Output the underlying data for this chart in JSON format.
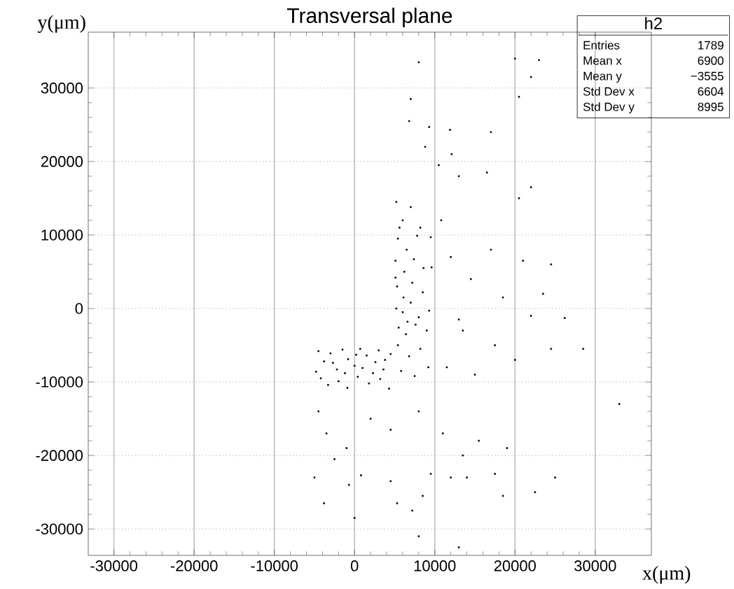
{
  "chart_data": {
    "type": "scatter",
    "title": "Transversal plane",
    "xlabel": "x(μm)",
    "ylabel": "y(μm)",
    "xlim": [
      -33200,
      37000
    ],
    "ylim": [
      -33600,
      37600
    ],
    "xticks": [
      -30000,
      -20000,
      -10000,
      0,
      10000,
      20000,
      30000
    ],
    "yticks": [
      -30000,
      -20000,
      -10000,
      0,
      10000,
      20000,
      30000
    ],
    "grid": true,
    "marker": "square",
    "annotations": [
      "h2",
      "Entries",
      "1789",
      "Mean x",
      "6900",
      "Mean y",
      "−3555",
      "Std Dev x",
      "6604",
      "Std Dev y",
      "8995"
    ],
    "series": [
      {
        "color": "#000000",
        "x": [
          -4500,
          -3800,
          -3000,
          -2200,
          -1500,
          -800,
          0,
          700,
          1500,
          2300,
          3000,
          3800,
          4500,
          -4200,
          -3300,
          -2000,
          -900,
          400,
          1800,
          3200,
          4300,
          -2700,
          1000,
          2600,
          -4800,
          -1200,
          3600,
          200,
          5200,
          6000,
          7000,
          8200,
          5400,
          6500,
          7800,
          9500,
          5100,
          6200,
          7400,
          8600,
          9600,
          5300,
          6100,
          7200,
          8500,
          5200,
          6000,
          7000,
          8000,
          9300,
          5500,
          6400,
          7600,
          9000,
          5400,
          6800,
          8200,
          5800,
          7500,
          9200,
          5100,
          6600,
          5600,
          8000,
          7000,
          6800,
          9300,
          8800,
          11900,
          12100,
          17000,
          20000,
          22000,
          20500,
          23000,
          10500,
          13000,
          16500,
          20500,
          22000,
          12000,
          14500,
          17000,
          18500,
          21000,
          22000,
          23500,
          24500,
          26200,
          20000,
          17500,
          13500,
          11500,
          15000,
          24500,
          28500,
          10800,
          13000,
          -4500,
          -3500,
          -1000,
          2000,
          4500,
          8000,
          11000,
          13500,
          15500,
          -5000,
          -3800,
          -700,
          800,
          4500,
          5300,
          7200,
          8500,
          9500,
          12000,
          14000,
          17500,
          19000,
          22500,
          25000,
          33000,
          0,
          8000,
          13000,
          18500,
          -2500
        ],
        "values": [
          -5800,
          -7200,
          -6100,
          -8300,
          -5600,
          -6900,
          -7800,
          -5500,
          -6400,
          -8800,
          -5700,
          -7000,
          -6200,
          -9500,
          -10400,
          -9900,
          -10800,
          -9300,
          -10200,
          -9600,
          -10900,
          -7400,
          -8100,
          -7300,
          -8600,
          -8800,
          -8300,
          -6300,
          14500,
          12000,
          13800,
          11000,
          9500,
          8000,
          9900,
          9700,
          6500,
          5000,
          6700,
          5500,
          5600,
          3000,
          1500,
          3500,
          2200,
          0,
          -500,
          800,
          -1200,
          -300,
          -2600,
          -3500,
          -2200,
          -3000,
          -5000,
          -6500,
          -5500,
          -8500,
          -9200,
          -8000,
          4200,
          -1800,
          11000,
          33500,
          28500,
          25500,
          24700,
          22000,
          24300,
          21000,
          24000,
          34000,
          31500,
          28800,
          33800,
          19500,
          18000,
          18500,
          15000,
          16500,
          7000,
          4000,
          8000,
          1500,
          6500,
          -1000,
          2000,
          6000,
          -1300,
          -7000,
          -5000,
          -3000,
          -8000,
          -9000,
          -5500,
          -5500,
          12000,
          -1500,
          -14000,
          -17000,
          -19000,
          -15000,
          -16500,
          -14000,
          -17000,
          -20000,
          -18000,
          -23000,
          -26500,
          -24000,
          -22700,
          -23500,
          -26500,
          -27500,
          -25500,
          -22500,
          -23000,
          -23000,
          -22500,
          -19000,
          -25000,
          -23000,
          -13000,
          -28500,
          -31000,
          -32500,
          -25500,
          -20500
        ]
      }
    ]
  }
}
